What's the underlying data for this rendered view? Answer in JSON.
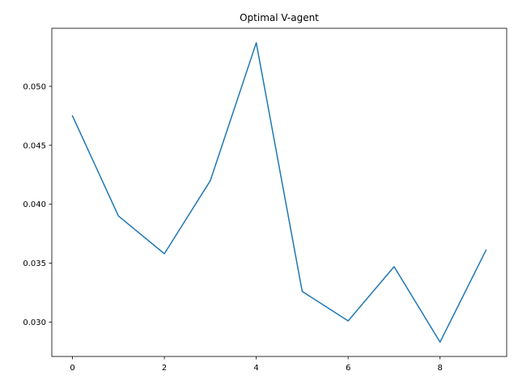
{
  "chart_data": {
    "type": "line",
    "title": "Optimal V-agent",
    "xlabel": "",
    "ylabel": "",
    "xlim": [
      -0.45,
      9.45
    ],
    "ylim": [
      0.02708,
      0.05493
    ],
    "x_ticks": [
      0,
      2,
      4,
      6,
      8
    ],
    "x_tick_labels": [
      "0",
      "2",
      "4",
      "6",
      "8"
    ],
    "y_ticks": [
      0.03,
      0.035,
      0.04,
      0.045,
      0.05
    ],
    "y_tick_labels": [
      "0.030",
      "0.035",
      "0.040",
      "0.045",
      "0.050"
    ],
    "grid": false,
    "legend": "none",
    "series": [
      {
        "color": "#1f77b4",
        "x": [
          0,
          1,
          2,
          3,
          4,
          5,
          6,
          7,
          8,
          9
        ],
        "y": [
          0.0475,
          0.039,
          0.0358,
          0.042,
          0.0537,
          0.0326,
          0.0301,
          0.0347,
          0.0283,
          0.0361
        ]
      }
    ]
  }
}
